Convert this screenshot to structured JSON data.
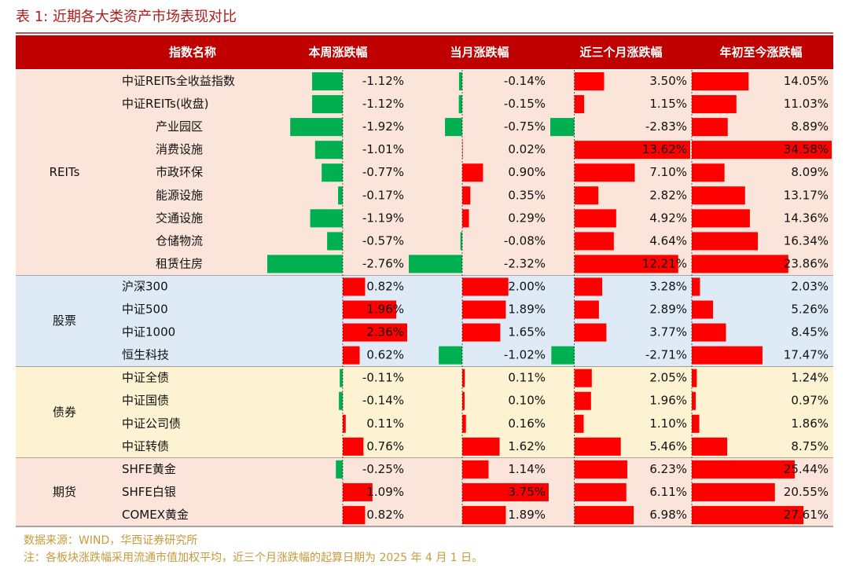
{
  "title": "表 1:  近期各大类资产市场表现对比",
  "header": [
    "指数名称",
    "本周涨跌幅",
    "当月涨跌幅",
    "近三个月涨跌幅",
    "年初至今涨跌幅"
  ],
  "groups": [
    {
      "name": "REITs",
      "rows": [
        {
          "name": "中证REITs全收益指数",
          "values": [
            -1.12,
            -0.14,
            3.5,
            14.05
          ],
          "value_labels": [
            "-1.12%",
            "-0.14%",
            "3.50%",
            "14.05%"
          ]
        },
        {
          "name": "中证REITs(收盘)",
          "values": [
            -1.12,
            -0.15,
            1.15,
            11.03
          ],
          "value_labels": [
            "-1.12%",
            "-0.15%",
            "1.15%",
            "11.03%"
          ]
        },
        {
          "name": "产业园区",
          "values": [
            -1.92,
            -0.75,
            -2.83,
            8.89
          ],
          "value_labels": [
            "-1.92%",
            "-0.75%",
            "-2.83%",
            "8.89%"
          ]
        },
        {
          "name": "消费设施",
          "values": [
            -1.01,
            0.02,
            13.62,
            34.58
          ],
          "value_labels": [
            "-1.01%",
            "0.02%",
            "13.62%",
            "34.58%"
          ]
        },
        {
          "name": "市政环保",
          "values": [
            -0.77,
            0.9,
            7.1,
            8.09
          ],
          "value_labels": [
            "-0.77%",
            "0.90%",
            "7.10%",
            "8.09%"
          ]
        },
        {
          "name": "能源设施",
          "values": [
            -0.17,
            0.35,
            2.82,
            13.17
          ],
          "value_labels": [
            "-0.17%",
            "0.35%",
            "2.82%",
            "13.17%"
          ]
        },
        {
          "name": "交通设施",
          "values": [
            -1.19,
            0.29,
            4.92,
            14.36
          ],
          "value_labels": [
            "-1.19%",
            "0.29%",
            "4.92%",
            "14.36%"
          ]
        },
        {
          "name": "仓储物流",
          "values": [
            -0.57,
            -0.08,
            4.64,
            16.34
          ],
          "value_labels": [
            "-0.57%",
            "-0.08%",
            "4.64%",
            "16.34%"
          ]
        },
        {
          "name": "租赁住房",
          "values": [
            -2.76,
            -2.32,
            12.21,
            23.86
          ],
          "value_labels": [
            "-2.76%",
            "-2.32%",
            "12.21%",
            "23.86%"
          ]
        }
      ]
    },
    {
      "name": "股票",
      "rows": [
        {
          "name": "沪深300",
          "values": [
            0.82,
            2.0,
            3.28,
            2.03
          ],
          "value_labels": [
            "0.82%",
            "2.00%",
            "3.28%",
            "2.03%"
          ]
        },
        {
          "name": "中证500",
          "values": [
            1.96,
            1.89,
            2.89,
            5.26
          ],
          "value_labels": [
            "1.96%",
            "1.89%",
            "2.89%",
            "5.26%"
          ]
        },
        {
          "name": "中证1000",
          "values": [
            2.36,
            1.65,
            3.77,
            8.45
          ],
          "value_labels": [
            "2.36%",
            "1.65%",
            "3.77%",
            "8.45%"
          ]
        },
        {
          "name": "恒生科技",
          "values": [
            0.62,
            -1.02,
            -2.71,
            17.47
          ],
          "value_labels": [
            "0.62%",
            "-1.02%",
            "-2.71%",
            "17.47%"
          ]
        }
      ]
    },
    {
      "name": "债券",
      "rows": [
        {
          "name": "中证全债",
          "values": [
            -0.11,
            0.11,
            2.05,
            1.24
          ],
          "value_labels": [
            "-0.11%",
            "0.11%",
            "2.05%",
            "1.24%"
          ]
        },
        {
          "name": "中证国债",
          "values": [
            -0.14,
            0.1,
            1.96,
            0.97
          ],
          "value_labels": [
            "-0.14%",
            "0.10%",
            "1.96%",
            "0.97%"
          ]
        },
        {
          "name": "中证公司债",
          "values": [
            0.11,
            0.16,
            1.1,
            1.86
          ],
          "value_labels": [
            "0.11%",
            "0.16%",
            "1.10%",
            "1.86%"
          ]
        },
        {
          "name": "中证转债",
          "values": [
            0.76,
            1.62,
            5.46,
            8.75
          ],
          "value_labels": [
            "0.76%",
            "1.62%",
            "5.46%",
            "8.75%"
          ]
        }
      ]
    },
    {
      "name": "期货",
      "rows": [
        {
          "name": "SHFE黄金",
          "values": [
            -0.25,
            1.14,
            6.23,
            25.44
          ],
          "value_labels": [
            "-0.25%",
            "1.14%",
            "6.23%",
            "25.44%"
          ]
        },
        {
          "name": "SHFE白银",
          "values": [
            1.09,
            3.75,
            6.11,
            20.55
          ],
          "value_labels": [
            "1.09%",
            "3.75%",
            "6.11%",
            "20.55%"
          ]
        },
        {
          "name": "COMEX黄金",
          "values": [
            0.82,
            1.89,
            6.98,
            27.61
          ],
          "value_labels": [
            "0.82%",
            "1.89%",
            "6.98%",
            "27.61%"
          ]
        }
      ]
    }
  ],
  "footer": [
    "数据来源：WIND，华西证券研究所",
    "注：各板块涨跌幅采用流通市值加权平均，近三个月涨跌幅的起算日期为 2025 年 4 月 1 日。"
  ]
}
